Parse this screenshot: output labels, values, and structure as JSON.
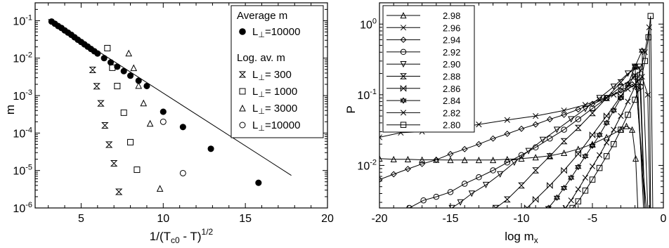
{
  "chart_data": [
    {
      "type": "scatter",
      "xlabel": "1/(T",
      "xlabel_sub": "c0",
      "xlabel_tail": " - T)",
      "xlabel_sup": "1/2",
      "ylabel": "m",
      "yscale": "log",
      "xlim": [
        2.2,
        20
      ],
      "ylim": [
        1e-06,
        0.3
      ],
      "x_ticks": [
        5,
        10,
        15,
        20
      ],
      "y_ticks": [
        {
          "value": 1e-06,
          "exp": "-6"
        },
        {
          "value": 1e-05,
          "exp": "-5"
        },
        {
          "value": 0.0001,
          "exp": "-4"
        },
        {
          "value": 0.001,
          "exp": "-3"
        },
        {
          "value": 0.01,
          "exp": "-2"
        },
        {
          "value": 0.1,
          "exp": "-1"
        }
      ],
      "legend": {
        "position": "top-right",
        "heading1": "Average m",
        "heading2": "Log. av. m",
        "symbol": "L",
        "sub": "⊥"
      },
      "fit_line": {
        "slope": -0.2816,
        "intercept": -0.118,
        "x_range": [
          3,
          17.8
        ]
      },
      "series": [
        {
          "name": "=10000",
          "group": 1,
          "marker": "filled-circle",
          "x": [
            3.2,
            3.4,
            3.6,
            3.8,
            4.0,
            4.2,
            4.4,
            4.6,
            4.8,
            5.0,
            5.2,
            5.4,
            5.6,
            5.8,
            6.0,
            6.4,
            6.8,
            7.2,
            7.6,
            8.0,
            8.5,
            9.0,
            10.0,
            11.2,
            12.9,
            15.8
          ],
          "y": [
            0.095,
            0.083,
            0.072,
            0.064,
            0.055,
            0.048,
            0.042,
            0.036,
            0.031,
            0.027,
            0.0234,
            0.0203,
            0.0176,
            0.0153,
            0.0133,
            0.01,
            0.0077,
            0.0059,
            0.0045,
            0.0034,
            0.0025,
            0.0018,
            0.00037,
            0.000145,
            3.8e-05,
            4.7e-06
          ]
        },
        {
          "name": "=   300",
          "group": 2,
          "marker": "hourglass",
          "x": [
            5.7,
            5.95,
            6.2,
            6.45,
            6.7,
            7.0,
            7.3
          ],
          "y": [
            0.00485,
            0.00178,
            0.00062,
            0.00016,
            4.9e-05,
            1.55e-05,
            2.7e-06
          ]
        },
        {
          "name": "=  1000",
          "group": 2,
          "marker": "open-square",
          "x": [
            6.6,
            6.9,
            7.2,
            7.6,
            8.0,
            8.4
          ],
          "y": [
            0.0185,
            0.00555,
            0.0018,
            0.00035,
            5.7e-05,
            1.05e-05
          ]
        },
        {
          "name": "=  3000",
          "group": 2,
          "marker": "open-triangle",
          "x": [
            7.9,
            8.2,
            8.5,
            8.8,
            9.2,
            9.8
          ],
          "y": [
            0.0135,
            0.0055,
            0.00185,
            0.00063,
            0.00018,
            3.3e-06
          ]
        },
        {
          "name": "=10000",
          "group": 2,
          "marker": "open-circle",
          "x": [
            10.0,
            11.2
          ],
          "y": [
            0.0002,
            8.5e-06
          ]
        }
      ]
    },
    {
      "type": "line",
      "xlabel": "log m",
      "xlabel_sub": "x",
      "ylabel": "P",
      "yscale": "log",
      "xlim": [
        -20,
        0
      ],
      "ylim": [
        0.0025,
        2.0
      ],
      "x_ticks": [
        -20,
        -15,
        -10,
        -5,
        0
      ],
      "y_ticks": [
        {
          "value": 0.01,
          "exp": "-2"
        },
        {
          "value": 0.1,
          "exp": "-1"
        },
        {
          "value": 1,
          "exp": "0"
        }
      ],
      "legend": {
        "position": "top-left"
      },
      "series": [
        {
          "name": "2.98",
          "marker": "open-triangle",
          "x": [
            -20,
            -19,
            -18,
            -17,
            -16,
            -15,
            -14,
            -13,
            -12,
            -11,
            -10,
            -9,
            -8,
            -7,
            -6,
            -5,
            -4,
            -3,
            -2.6,
            -2.2,
            -1.95,
            -1.8
          ],
          "y": [
            0.0125,
            0.0122,
            0.0122,
            0.012,
            0.012,
            0.0119,
            0.0119,
            0.0119,
            0.0119,
            0.0122,
            0.0125,
            0.013,
            0.0137,
            0.015,
            0.017,
            0.02,
            0.025,
            0.032,
            0.036,
            0.032,
            0.0125,
            0.002
          ]
        },
        {
          "name": "2.96",
          "marker": "x",
          "x": [
            -20,
            -18.5,
            -17,
            -15,
            -13,
            -11,
            -9,
            -7,
            -5.5,
            -4.5,
            -3.5,
            -2.5,
            -2,
            -1.5,
            -1.1,
            -0.95
          ],
          "y": [
            0.025,
            0.029,
            0.03,
            0.033,
            0.038,
            0.044,
            0.05,
            0.06,
            0.072,
            0.085,
            0.1,
            0.12,
            0.14,
            0.18,
            0.1,
            0.002
          ]
        },
        {
          "name": "2.94",
          "marker": "diamond",
          "x": [
            -20,
            -19,
            -18,
            -17,
            -16,
            -15,
            -14,
            -13,
            -12,
            -11,
            -10,
            -9,
            -8,
            -7,
            -6,
            -5,
            -4,
            -3,
            -2.2,
            -1.8,
            -1.4
          ],
          "y": [
            0.0063,
            0.0075,
            0.0089,
            0.0105,
            0.012,
            0.0145,
            0.017,
            0.02,
            0.024,
            0.028,
            0.033,
            0.038,
            0.045,
            0.052,
            0.062,
            0.074,
            0.09,
            0.115,
            0.14,
            0.12,
            0.002
          ]
        },
        {
          "name": "2.92",
          "marker": "open-circle",
          "x": [
            -17.9,
            -16.9,
            -16,
            -15,
            -14,
            -13,
            -12,
            -11,
            -10,
            -9,
            -8,
            -7,
            -6,
            -5,
            -4,
            -3,
            -2,
            -1.6,
            -1.3
          ],
          "y": [
            0.0025,
            0.0032,
            0.0036,
            0.0042,
            0.0055,
            0.0068,
            0.0085,
            0.011,
            0.014,
            0.018,
            0.024,
            0.032,
            0.045,
            0.064,
            0.09,
            0.13,
            0.18,
            0.13,
            0.002
          ]
        },
        {
          "name": "2.90",
          "marker": "open-triangle-down",
          "x": [
            -14.9,
            -14.3,
            -13.5,
            -12.5,
            -11.5,
            -10.5,
            -9.5,
            -8.5,
            -7.5,
            -6.5,
            -5.5,
            -4.5,
            -3.5,
            -2.5,
            -1.7,
            -1.3
          ],
          "y": [
            0.0025,
            0.003,
            0.004,
            0.0053,
            0.0075,
            0.011,
            0.016,
            0.023,
            0.032,
            0.045,
            0.063,
            0.09,
            0.13,
            0.2,
            0.25,
            0.002
          ]
        },
        {
          "name": "2.88",
          "marker": "hourglass",
          "x": [
            -11.8,
            -11,
            -10,
            -9,
            -8,
            -7,
            -6,
            -5,
            -4,
            -3,
            -2,
            -1.3
          ],
          "y": [
            0.0025,
            0.0033,
            0.0052,
            0.0085,
            0.0135,
            0.022,
            0.034,
            0.055,
            0.09,
            0.15,
            0.25,
            0.002
          ]
        },
        {
          "name": "2.86",
          "marker": "bowtie",
          "x": [
            -9.6,
            -9,
            -8,
            -7,
            -6,
            -5,
            -4,
            -3,
            -2,
            -1.2
          ],
          "y": [
            0.0025,
            0.0033,
            0.0052,
            0.0085,
            0.0145,
            0.027,
            0.05,
            0.095,
            0.19,
            0.002
          ]
        },
        {
          "name": "2.84",
          "marker": "star",
          "x": [
            -8.1,
            -7.5,
            -7,
            -6.5,
            -6,
            -5.5,
            -5,
            -4.5,
            -4,
            -3.5,
            -3,
            -2.5,
            -2,
            -1.5,
            -1.1
          ],
          "y": [
            0.0025,
            0.0035,
            0.0048,
            0.0067,
            0.0095,
            0.0135,
            0.019,
            0.027,
            0.04,
            0.06,
            0.09,
            0.14,
            0.25,
            0.42,
            0.002
          ]
        },
        {
          "name": "2.82",
          "marker": "x",
          "x": [
            -6.9,
            -6.5,
            -6,
            -5.5,
            -5,
            -4.5,
            -4,
            -3.5,
            -3,
            -2.5,
            -2,
            -1.6,
            -1.3,
            -1.0,
            -0.9
          ],
          "y": [
            0.0025,
            0.0032,
            0.0046,
            0.0067,
            0.0097,
            0.014,
            0.021,
            0.032,
            0.05,
            0.08,
            0.13,
            0.22,
            0.4,
            0.9,
            0.002
          ]
        },
        {
          "name": "2.80",
          "marker": "open-square",
          "x": [
            -6.4,
            -6,
            -5.5,
            -5,
            -4.5,
            -4,
            -3.5,
            -3,
            -2.5,
            -2,
            -1.6,
            -1.3,
            -1.05,
            -0.9,
            -0.75
          ],
          "y": [
            0.0025,
            0.0031,
            0.0044,
            0.0063,
            0.0092,
            0.0135,
            0.02,
            0.032,
            0.052,
            0.085,
            0.15,
            0.3,
            0.65,
            1.3,
            0.002
          ]
        }
      ]
    }
  ]
}
